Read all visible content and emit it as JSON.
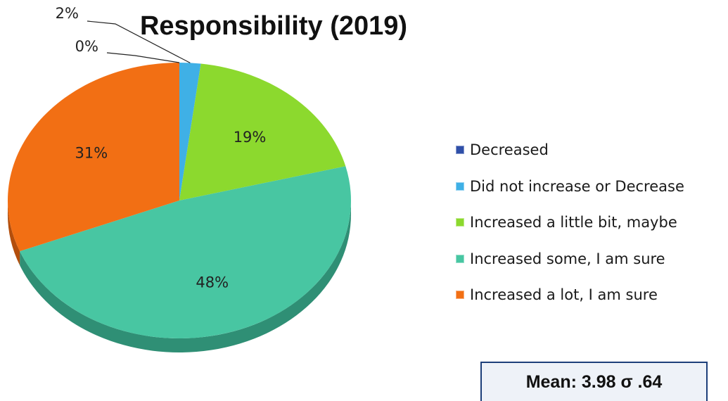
{
  "chart_data": {
    "type": "pie",
    "title": "Responsibility (2019)",
    "categories": [
      "Decreased",
      "Did not increase or Decrease",
      "Increased a little bit, maybe",
      "Increased some, I am sure",
      "Increased a lot, I am sure"
    ],
    "values": [
      0,
      2,
      19,
      48,
      31
    ],
    "data_labels": [
      "0%",
      "2%",
      "19%",
      "48%",
      "31%"
    ],
    "colors": [
      "#2f4fa8",
      "#3fb0e6",
      "#8cd92e",
      "#48c6a2",
      "#f26f14"
    ],
    "side_colors": [
      "#1d3270",
      "#2a7fa8",
      "#5c9a1c",
      "#2f8f75",
      "#b34e0c"
    ],
    "legend_position": "right"
  },
  "summary": {
    "mean_text": "Mean: 3.98 σ .64"
  }
}
